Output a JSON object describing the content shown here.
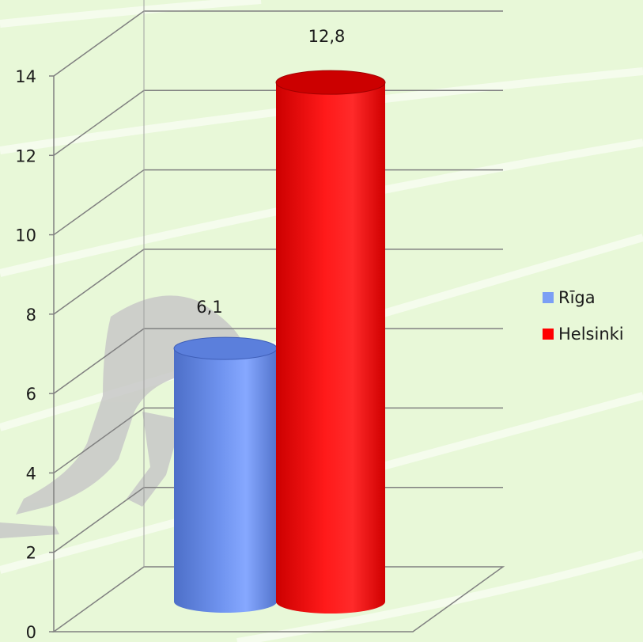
{
  "chart_data": {
    "type": "bar",
    "title": "",
    "xlabel": "",
    "ylabel": "",
    "categories": [
      "Rīga",
      "Helsinki"
    ],
    "series": [
      {
        "name": "Rīga",
        "value": 6.1,
        "label": "6,1",
        "color": "#7b9ff5"
      },
      {
        "name": "Helsinki",
        "value": 12.8,
        "label": "12,8",
        "color": "#ff0000"
      }
    ],
    "ylim": [
      0,
      14
    ],
    "yticks": [
      {
        "value": 0,
        "label": "0"
      },
      {
        "value": 2,
        "label": "2"
      },
      {
        "value": 4,
        "label": "4"
      },
      {
        "value": 6,
        "label": "6"
      },
      {
        "value": 8,
        "label": "8"
      },
      {
        "value": 10,
        "label": "10"
      },
      {
        "value": 12,
        "label": "12"
      },
      {
        "value": 14,
        "label": "14"
      }
    ],
    "grid": true,
    "legend_position": "right",
    "style": "3d-cylinder"
  }
}
